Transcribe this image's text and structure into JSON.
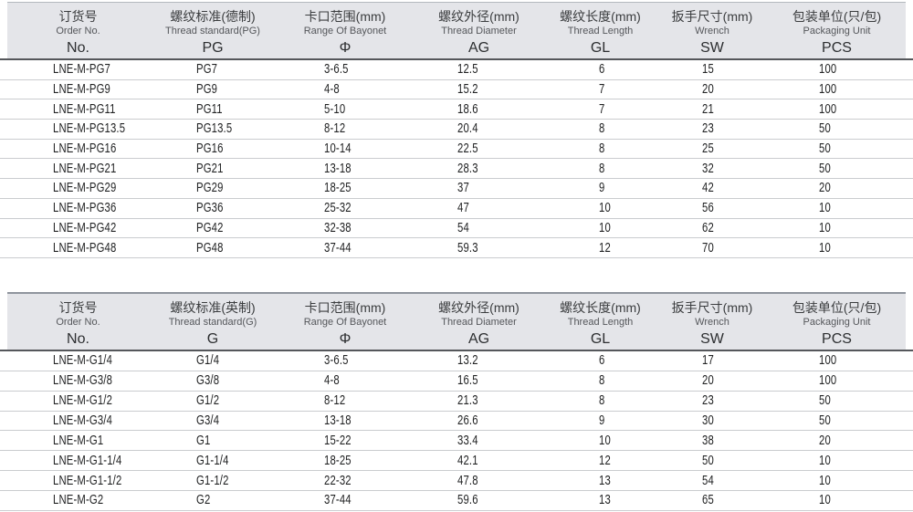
{
  "colors": {
    "header_bg": "#e4e5e9",
    "header_rule_dark": "#55575b",
    "row_separator": "#cacccf"
  },
  "tables": [
    {
      "id": "pg",
      "columns": [
        {
          "zh": "订货号",
          "en": "Order No.",
          "code": "No."
        },
        {
          "zh": "螺纹标准(德制)",
          "en": "Thread standard(PG)",
          "code": "PG"
        },
        {
          "zh": "卡口范围(mm)",
          "en": "Range Of Bayonet",
          "code": "Φ"
        },
        {
          "zh": "螺纹外径(mm)",
          "en": "Thread Diameter",
          "code": "AG"
        },
        {
          "zh": "螺纹长度(mm)",
          "en": "Thread Length",
          "code": "GL"
        },
        {
          "zh": "扳手尺寸(mm)",
          "en": "Wrench",
          "code": "SW"
        },
        {
          "zh": "包装单位(只/包)",
          "en": "Packaging Unit",
          "code": "PCS"
        }
      ],
      "rows": [
        [
          "LNE-M-PG7",
          "PG7",
          "3-6.5",
          "12.5",
          "6",
          "15",
          "100"
        ],
        [
          "LNE-M-PG9",
          "PG9",
          "4-8",
          "15.2",
          "7",
          "20",
          "100"
        ],
        [
          "LNE-M-PG11",
          "PG11",
          "5-10",
          "18.6",
          "7",
          "21",
          "100"
        ],
        [
          "LNE-M-PG13.5",
          "PG13.5",
          "8-12",
          "20.4",
          "8",
          "23",
          "50"
        ],
        [
          "LNE-M-PG16",
          "PG16",
          "10-14",
          "22.5",
          "8",
          "25",
          "50"
        ],
        [
          "LNE-M-PG21",
          "PG21",
          "13-18",
          "28.3",
          "8",
          "32",
          "50"
        ],
        [
          "LNE-M-PG29",
          "PG29",
          "18-25",
          "37",
          "9",
          "42",
          "20"
        ],
        [
          "LNE-M-PG36",
          "PG36",
          "25-32",
          "47",
          "10",
          "56",
          "10"
        ],
        [
          "LNE-M-PG42",
          "PG42",
          "32-38",
          "54",
          "10",
          "62",
          "10"
        ],
        [
          "LNE-M-PG48",
          "PG48",
          "37-44",
          "59.3",
          "12",
          "70",
          "10"
        ]
      ]
    },
    {
      "id": "g",
      "columns": [
        {
          "zh": "订货号",
          "en": "Order No.",
          "code": "No."
        },
        {
          "zh": "螺纹标准(英制)",
          "en": "Thread standard(G)",
          "code": "G"
        },
        {
          "zh": "卡口范围(mm)",
          "en": "Range Of Bayonet",
          "code": "Φ"
        },
        {
          "zh": "螺纹外径(mm)",
          "en": "Thread Diameter",
          "code": "AG"
        },
        {
          "zh": "螺纹长度(mm)",
          "en": "Thread Length",
          "code": "GL"
        },
        {
          "zh": "扳手尺寸(mm)",
          "en": "Wrench",
          "code": "SW"
        },
        {
          "zh": "包装单位(只/包)",
          "en": "Packaging Unit",
          "code": "PCS"
        }
      ],
      "rows": [
        [
          "LNE-M-G1/4",
          "G1/4",
          "3-6.5",
          "13.2",
          "6",
          "17",
          "100"
        ],
        [
          "LNE-M-G3/8",
          "G3/8",
          "4-8",
          "16.5",
          "8",
          "20",
          "100"
        ],
        [
          "LNE-M-G1/2",
          "G1/2",
          "8-12",
          "21.3",
          "8",
          "23",
          "50"
        ],
        [
          "LNE-M-G3/4",
          "G3/4",
          "13-18",
          "26.6",
          "9",
          "30",
          "50"
        ],
        [
          "LNE-M-G1",
          "G1",
          "15-22",
          "33.4",
          "10",
          "38",
          "20"
        ],
        [
          "LNE-M-G1-1/4",
          "G1-1/4",
          "18-25",
          "42.1",
          "12",
          "50",
          "10"
        ],
        [
          "LNE-M-G1-1/2",
          "G1-1/2",
          "22-32",
          "47.8",
          "13",
          "54",
          "10"
        ],
        [
          "LNE-M-G2",
          "G2",
          "37-44",
          "59.6",
          "13",
          "65",
          "10"
        ]
      ]
    }
  ]
}
